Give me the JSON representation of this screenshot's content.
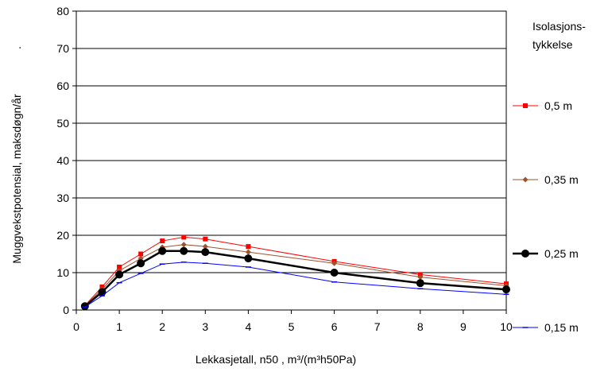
{
  "chart_data": {
    "type": "line",
    "xlabel": "Lekkasjetall, n50 , m³/(m³h50Pa)",
    "ylabel": "Muggvekstpotensial, maksdøgn/år",
    "ylabel_suffix": ".",
    "xlim": [
      0,
      10
    ],
    "ylim": [
      0,
      80
    ],
    "xticks": [
      0,
      1,
      2,
      3,
      4,
      5,
      6,
      7,
      8,
      9,
      10
    ],
    "yticks": [
      0,
      10,
      20,
      30,
      40,
      50,
      60,
      70,
      80
    ],
    "grid": "horizontal",
    "legend_position": "right",
    "legend_title": [
      "Isolasjons-",
      "tykkelse"
    ],
    "series": [
      {
        "name": "0,5 m",
        "color": "#ff0000",
        "marker": "square",
        "x": [
          0.2,
          0.6,
          1.0,
          1.5,
          2.0,
          2.5,
          3.0,
          4.0,
          6.0,
          8.0,
          10.0
        ],
        "y": [
          1.2,
          6.2,
          11.5,
          15.0,
          18.5,
          19.5,
          19.0,
          17.0,
          13.0,
          9.5,
          7.0
        ]
      },
      {
        "name": "0,35 m",
        "color": "#a0522d",
        "marker": "diamond",
        "x": [
          0.2,
          0.6,
          1.0,
          1.5,
          2.0,
          2.5,
          3.0,
          4.0,
          6.0,
          8.0,
          10.0
        ],
        "y": [
          1.1,
          5.5,
          10.5,
          13.8,
          16.8,
          17.5,
          17.0,
          15.5,
          12.5,
          8.8,
          6.5
        ]
      },
      {
        "name": "0,25 m",
        "color": "#000000",
        "marker": "circle",
        "x": [
          0.2,
          0.6,
          1.0,
          1.5,
          2.0,
          2.5,
          3.0,
          4.0,
          6.0,
          8.0,
          10.0
        ],
        "y": [
          1.0,
          4.8,
          9.5,
          12.5,
          15.8,
          15.8,
          15.5,
          13.8,
          10.0,
          7.2,
          5.5
        ]
      },
      {
        "name": "0,15 m",
        "color": "#0000ff",
        "marker": "dash",
        "x": [
          0.2,
          0.6,
          1.0,
          1.5,
          2.0,
          2.5,
          3.0,
          4.0,
          6.0,
          8.0,
          10.0
        ],
        "y": [
          0.8,
          3.8,
          7.3,
          9.8,
          12.3,
          12.8,
          12.5,
          11.5,
          7.5,
          5.7,
          4.2
        ]
      }
    ]
  }
}
